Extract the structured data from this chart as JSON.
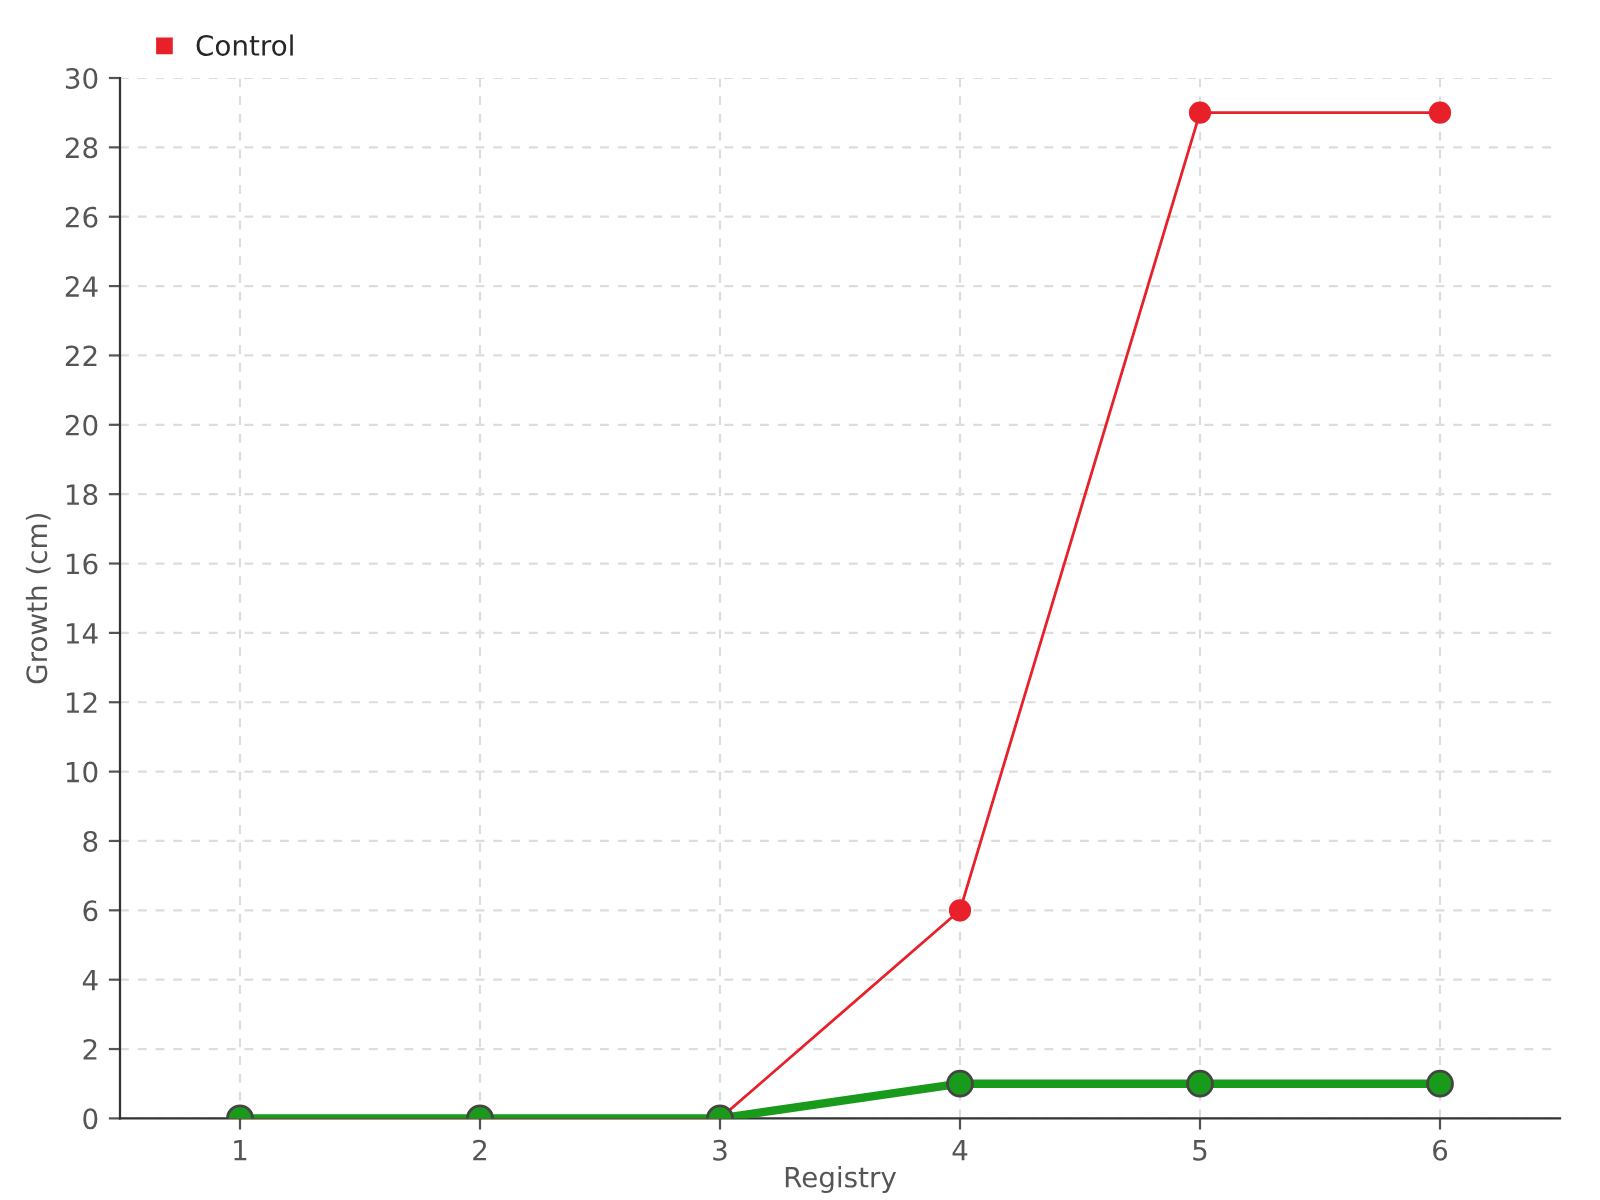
{
  "chart_data": {
    "type": "line",
    "xlabel": "Registry",
    "ylabel": "Growth (cm)",
    "x": [
      1,
      2,
      3,
      4,
      5,
      6
    ],
    "series": [
      {
        "color": "#1a9a1a",
        "values": [
          0,
          0,
          0,
          1,
          1,
          1
        ]
      },
      {
        "name": "Control",
        "color": "#e8202a",
        "values": [
          0,
          0,
          0,
          6,
          29,
          29
        ]
      }
    ],
    "xlim": [
      0.5,
      6.5
    ],
    "xticks": [
      1,
      2,
      3,
      4,
      5,
      6
    ],
    "ylim": [
      0,
      30
    ],
    "yticks": [
      0,
      2,
      4,
      6,
      8,
      10,
      12,
      14,
      16,
      18,
      20,
      22,
      24,
      26,
      28,
      30
    ],
    "grid": true,
    "legend": "top left",
    "marker": "circle",
    "line_style": "solid"
  }
}
